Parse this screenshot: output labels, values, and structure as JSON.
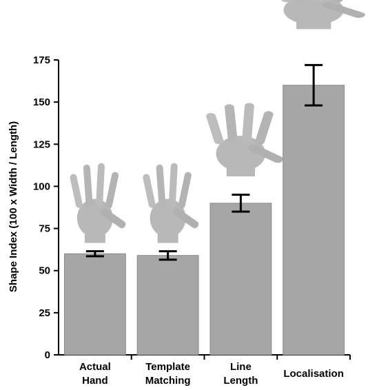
{
  "chart_data": {
    "type": "bar",
    "y_label": "Shape Index (100 x Width / Length)",
    "categories": [
      "Actual Hand",
      "Template Matching",
      "Line Length",
      "Localisation"
    ],
    "values": [
      60,
      59,
      90,
      160
    ],
    "errors": [
      1.5,
      2.5,
      5,
      12
    ],
    "color": "#a6a6a6",
    "ylim": [
      0,
      175
    ],
    "yticks": [
      0,
      25,
      50,
      75,
      100,
      125,
      150,
      175
    ],
    "grid": false
  }
}
